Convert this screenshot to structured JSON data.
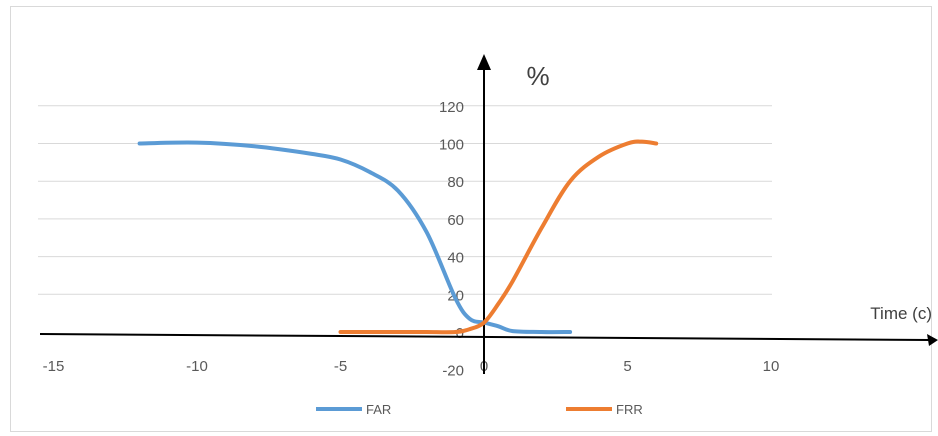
{
  "chart_data": {
    "type": "line",
    "xlabel": "Time (c)",
    "ylabel": "%",
    "xlim": [
      -15,
      15
    ],
    "ylim": [
      -20,
      120
    ],
    "x_ticks": [
      -15,
      -10,
      -5,
      0,
      5,
      10
    ],
    "y_ticks": [
      -20,
      0,
      20,
      40,
      60,
      80,
      100,
      120
    ],
    "grid": true,
    "legend": "bottom",
    "series": [
      {
        "name": "FAR",
        "color": "#5b9bd5",
        "x": [
          -12,
          -10,
          -8,
          -6,
          -5,
          -4,
          -3,
          -2,
          -1,
          -0.5,
          0,
          0.5,
          1,
          2,
          3
        ],
        "y": [
          100,
          100.5,
          98.5,
          94.5,
          91.5,
          85,
          75,
          53,
          18,
          7,
          5,
          3,
          0.5,
          0,
          0
        ]
      },
      {
        "name": "FRR",
        "color": "#ed7d31",
        "x": [
          -5,
          -3,
          -2,
          -1,
          -0.5,
          0,
          0.5,
          1,
          2,
          3,
          4,
          5,
          5.5,
          6
        ],
        "y": [
          0,
          0,
          0,
          0,
          1.5,
          5,
          15,
          27,
          55,
          80,
          93,
          100,
          101,
          100
        ]
      }
    ]
  }
}
